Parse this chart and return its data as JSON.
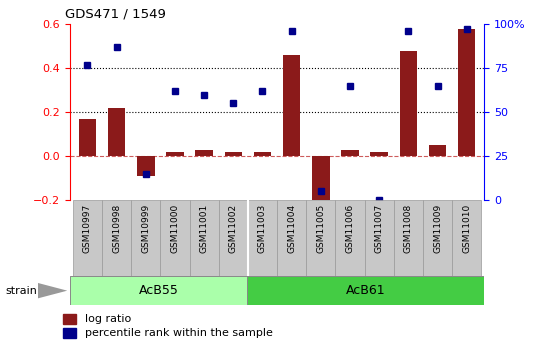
{
  "title": "GDS471 / 1549",
  "samples": [
    "GSM10997",
    "GSM10998",
    "GSM10999",
    "GSM11000",
    "GSM11001",
    "GSM11002",
    "GSM11003",
    "GSM11004",
    "GSM11005",
    "GSM11006",
    "GSM11007",
    "GSM11008",
    "GSM11009",
    "GSM11010"
  ],
  "log_ratio": [
    0.17,
    0.22,
    -0.09,
    0.02,
    0.03,
    0.02,
    0.02,
    0.46,
    -0.23,
    0.03,
    0.02,
    0.48,
    0.05,
    0.58
  ],
  "percentile": [
    77,
    87,
    15,
    62,
    60,
    55,
    62,
    96,
    5,
    65,
    0,
    96,
    65,
    97
  ],
  "bar_color": "#8B1A1A",
  "dot_color": "#00008B",
  "hline_color": "#CD5C5C",
  "dotted_color": "black",
  "ylim_left": [
    -0.2,
    0.6
  ],
  "ylim_right": [
    0,
    100
  ],
  "yticks_left": [
    -0.2,
    0.0,
    0.2,
    0.4,
    0.6
  ],
  "yticks_right": [
    0,
    25,
    50,
    75,
    100
  ],
  "dotted_lines": [
    0.4,
    0.2
  ],
  "acb55_color": "#AAFFAA",
  "acb61_color": "#44CC44",
  "xtick_bg": "#CCCCCC",
  "label_strain": "strain",
  "legend_ratio": "log ratio",
  "legend_pct": "percentile rank within the sample"
}
